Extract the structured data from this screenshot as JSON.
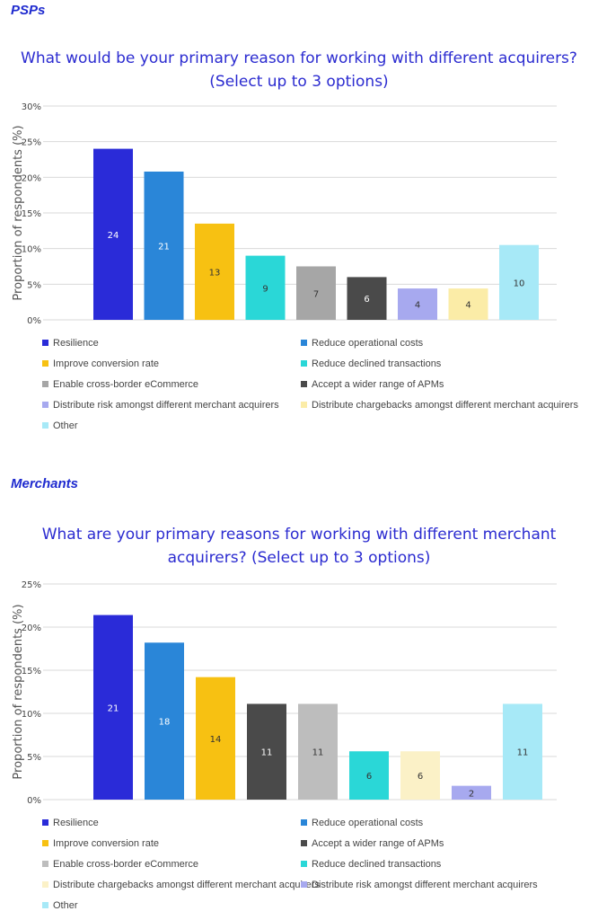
{
  "sections": [
    {
      "label": "PSPs",
      "title_line1": "What would be your primary reason for working with different acquirers?",
      "title_line2": "(Select up to 3 options)"
    },
    {
      "label": "Merchants",
      "title_line1": "What are your primary reasons for working with different merchant",
      "title_line2": "acquirers? (Select up to 3 options)"
    }
  ],
  "chart_data": [
    {
      "type": "bar",
      "title": "What would be your primary reason for working with different acquirers? (Select up to 3 options)",
      "ylabel": "Proportion of respondents (%)",
      "ylim": [
        0,
        30
      ],
      "yticks": [
        "0%",
        "5%",
        "10%",
        "15%",
        "20%",
        "25%",
        "30%"
      ],
      "grid": true,
      "legend_position": "bottom",
      "categories": [
        "Resilience",
        "Reduce operational costs",
        "Improve conversion rate",
        "Reduce declined transactions",
        "Enable cross-border eCommerce",
        "Accept a wider range of APMs",
        "Distribute risk amongst different merchant acquirers",
        "Distribute chargebacks amongst different merchant acquirers",
        "Other"
      ],
      "values": [
        24,
        21,
        13,
        9,
        7,
        6,
        4,
        4,
        10
      ],
      "heights": [
        24,
        20.8,
        13.5,
        9,
        7.5,
        6,
        4.4,
        4.4,
        10.5
      ],
      "colors": [
        "#2a2bd8",
        "#2a86d8",
        "#f7c112",
        "#2ad7d7",
        "#a6a6a6",
        "#4a4a4a",
        "#a7a9ef",
        "#fbeca7",
        "#a7e9f7"
      ],
      "label_colors": [
        "#ffffff",
        "#ffffff",
        "#333333",
        "#333333",
        "#333333",
        "#ffffff",
        "#333333",
        "#333333",
        "#333333"
      ]
    },
    {
      "type": "bar",
      "title": "What are your primary reasons for working with different merchant acquirers? (Select up to 3 options)",
      "ylabel": "Proportion of respondents (%)",
      "ylim": [
        0,
        25
      ],
      "yticks": [
        "0%",
        "5%",
        "10%",
        "15%",
        "20%",
        "25%"
      ],
      "grid": true,
      "legend_position": "bottom",
      "categories": [
        "Resilience",
        "Reduce operational costs",
        "Improve conversion rate",
        "Accept a wider range of APMs",
        "Enable cross-border eCommerce",
        "Reduce declined transactions",
        "Distribute chargebacks amongst different merchant acquirers",
        "Distribute risk amongst different merchant acquirers",
        "Other"
      ],
      "values": [
        21,
        18,
        14,
        11,
        11,
        6,
        6,
        2,
        11
      ],
      "heights": [
        21.4,
        18.2,
        14.2,
        11.1,
        11.1,
        5.6,
        5.6,
        1.6,
        11.1
      ],
      "colors": [
        "#2a2bd8",
        "#2a86d8",
        "#f7c112",
        "#4a4a4a",
        "#bdbdbd",
        "#2ad7d7",
        "#fbf1c7",
        "#a7a9ef",
        "#a7e9f7"
      ],
      "label_colors": [
        "#ffffff",
        "#ffffff",
        "#333333",
        "#ffffff",
        "#333333",
        "#333333",
        "#333333",
        "#333333",
        "#333333"
      ]
    }
  ]
}
